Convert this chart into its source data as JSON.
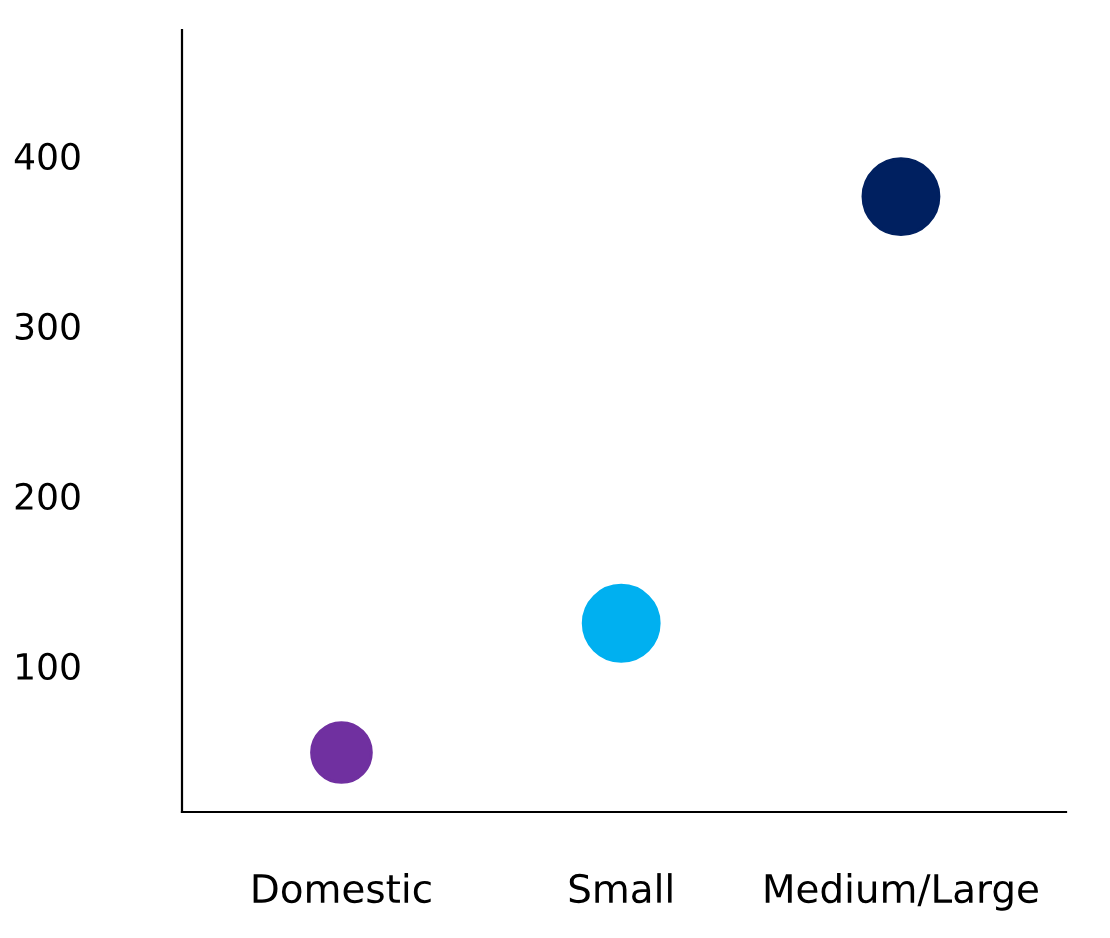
{
  "chart_data": {
    "type": "bubble",
    "categories": [
      "Domestic",
      "Small",
      "Medium/Large"
    ],
    "values": [
      49,
      125,
      376
    ],
    "sizes": [
      0.62,
      1,
      1
    ],
    "colors": [
      "#7030a0",
      "#00b0f0",
      "#002060"
    ],
    "ylim": [
      14,
      474
    ],
    "yticks": [
      100,
      200,
      300,
      400
    ],
    "grid": false,
    "legend": false
  }
}
